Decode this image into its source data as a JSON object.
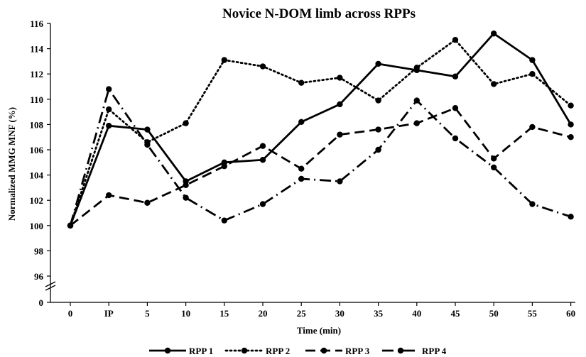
{
  "chart_data": {
    "type": "line",
    "title": "Novice N-DOM limb across RPPs",
    "xlabel": "Time (min)",
    "ylabel": "Normalized MMG MNF (%)",
    "categories": [
      "0",
      "IP",
      "5",
      "10",
      "15",
      "20",
      "25",
      "30",
      "35",
      "40",
      "45",
      "50",
      "55",
      "60"
    ],
    "y_ticks": [
      "0",
      "96",
      "98",
      "100",
      "102",
      "104",
      "106",
      "108",
      "110",
      "112",
      "114",
      "116"
    ],
    "ylim": [
      96,
      116
    ],
    "y_axis_break": true,
    "grid": false,
    "legend_position": "bottom",
    "series": [
      {
        "name": "RPP 1",
        "style": "solid",
        "values": [
          100,
          107.9,
          107.6,
          103.5,
          105.0,
          105.2,
          108.2,
          109.6,
          112.8,
          112.3,
          111.8,
          115.2,
          113.1,
          108.0
        ]
      },
      {
        "name": "RPP 2",
        "style": "dotted",
        "values": [
          100,
          109.2,
          106.6,
          108.1,
          113.1,
          112.6,
          111.3,
          111.7,
          109.9,
          112.5,
          114.7,
          111.2,
          112.0,
          109.5
        ]
      },
      {
        "name": "RPP 3",
        "style": "dashed",
        "values": [
          100,
          102.4,
          101.8,
          103.2,
          104.7,
          106.3,
          104.5,
          107.2,
          107.6,
          108.1,
          109.3,
          105.3,
          107.8,
          107.0
        ]
      },
      {
        "name": "RPP 4",
        "style": "dashdot",
        "values": [
          100,
          110.8,
          106.4,
          102.2,
          100.4,
          101.7,
          103.7,
          103.5,
          106.0,
          109.9,
          106.9,
          104.6,
          101.7,
          100.7
        ]
      }
    ],
    "series_color": "#000000"
  }
}
